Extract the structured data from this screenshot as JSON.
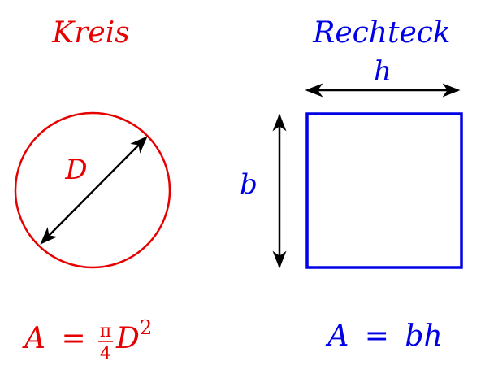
{
  "colors": {
    "circle": "#e60000",
    "rectangle": "#0000e6",
    "arrows": "#000000",
    "background": "#ffffff"
  },
  "circle": {
    "title": "Kreis",
    "dimension_label": "D",
    "formula": {
      "lhs": "A",
      "equals": "=",
      "frac_num": "π",
      "frac_den": "4",
      "var": "D",
      "exponent": "2"
    }
  },
  "rectangle": {
    "title": "Rechteck",
    "width_label": "h",
    "height_label": "b",
    "formula": {
      "lhs": "A",
      "equals": "=",
      "rhs": "bh"
    }
  }
}
